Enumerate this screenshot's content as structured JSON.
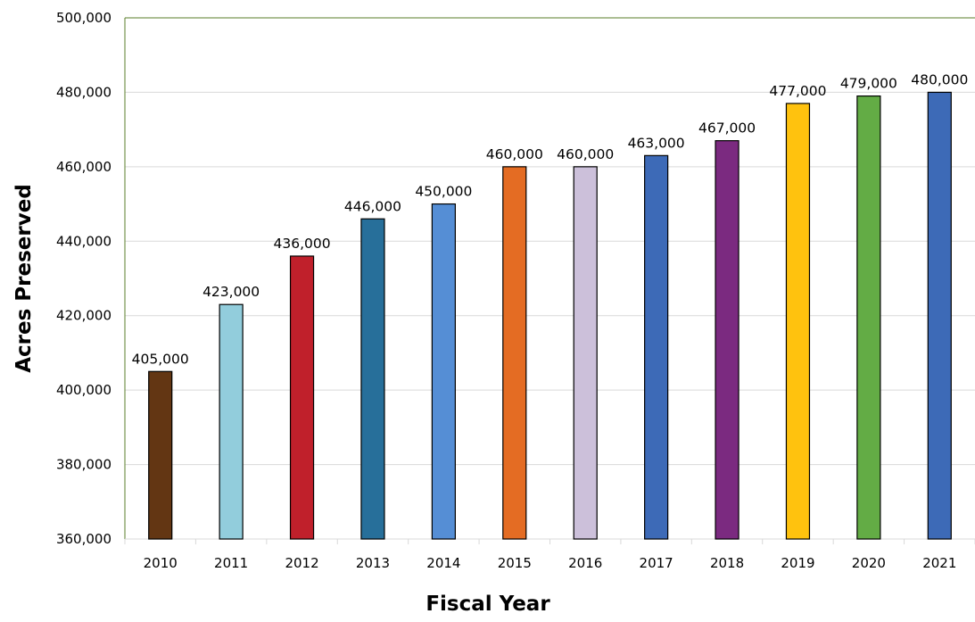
{
  "chart_data": {
    "type": "bar",
    "title": "",
    "xlabel": "Fiscal Year",
    "ylabel": "Acres Preserved",
    "categories": [
      "2010",
      "2011",
      "2012",
      "2013",
      "2014",
      "2015",
      "2016",
      "2017",
      "2018",
      "2019",
      "2020",
      "2021"
    ],
    "values": [
      405000,
      423000,
      436000,
      446000,
      450000,
      460000,
      460000,
      463000,
      467000,
      477000,
      479000,
      480000
    ],
    "data_labels": [
      "405,000",
      "423,000",
      "436,000",
      "446,000",
      "450,000",
      "460,000",
      "460,000",
      "463,000",
      "467,000",
      "477,000",
      "479,000",
      "480,000"
    ],
    "colors": [
      "#633613",
      "#92cddc",
      "#c0202b",
      "#276f9a",
      "#558ed5",
      "#e46c23",
      "#ccc0da",
      "#3d6ab7",
      "#7b2a80",
      "#ffc20e",
      "#63ac45",
      "#3d6ab7"
    ],
    "ylim": [
      360000,
      500000
    ],
    "yticks": [
      360000,
      380000,
      400000,
      420000,
      440000,
      460000,
      480000,
      500000
    ],
    "ytick_labels": [
      "360,000",
      "380,000",
      "400,000",
      "420,000",
      "440,000",
      "460,000",
      "480,000",
      "500,000"
    ],
    "grid": true,
    "legend": "none"
  }
}
